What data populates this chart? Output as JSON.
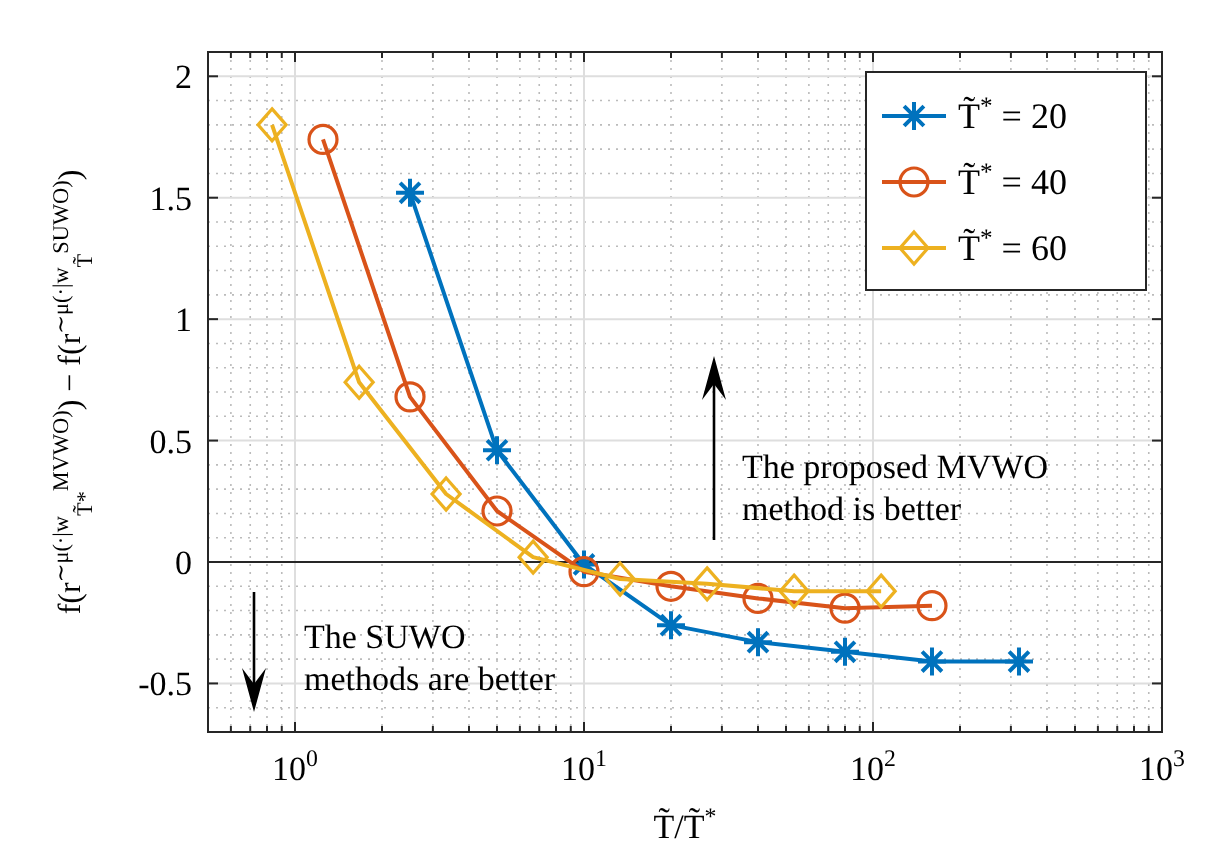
{
  "chart_data": {
    "type": "line",
    "xlabel": "T̃/T̃$^{*}$",
    "ylabel": "f(r$^{∼μ(·|w}$$_{T̃*}$$^{MVWO)}$) − f(r$^{∼μ(·|w}$$_{T̃}$$^{SUWO)}$)",
    "log": "x",
    "grid": true,
    "legend": "top right",
    "xlim": [
      0.5,
      1000
    ],
    "ylim": [
      -0.7,
      2.1
    ],
    "xticks": [
      {
        "value": 1,
        "label": "10$^{0}$"
      },
      {
        "value": 10,
        "label": "10$^{1}$"
      },
      {
        "value": 100,
        "label": "10$^{2}$"
      },
      {
        "value": 1000,
        "label": "10$^{3}$"
      }
    ],
    "yticks": [
      -0.5,
      0,
      0.5,
      1,
      1.5,
      2
    ],
    "ref_lines": [
      {
        "axis": "y",
        "value": 0,
        "color": "#262626"
      }
    ],
    "annotations": [
      "The proposed MVWO\nmethod is better",
      "The SUWO\nmethods are better"
    ],
    "series": [
      {
        "name": "T̃$^{*}$ = 20",
        "color": "#0072bd",
        "marker": "cross",
        "x": [
          2.5,
          5,
          10,
          20,
          40,
          80,
          160,
          320
        ],
        "values": [
          1.52,
          0.46,
          -0.01,
          -0.26,
          -0.33,
          -0.37,
          -0.41,
          -0.41
        ]
      },
      {
        "name": "T̃$^{*}$ = 40",
        "color": "#d95319",
        "marker": "circle",
        "x": [
          1.25,
          2.5,
          5,
          10,
          20,
          40,
          80,
          160
        ],
        "values": [
          1.74,
          0.68,
          0.21,
          -0.04,
          -0.1,
          -0.15,
          -0.19,
          -0.18
        ]
      },
      {
        "name": "T̃$^{*}$ = 60",
        "color": "#edb120",
        "marker": "diamond",
        "x": [
          0.833,
          1.667,
          3.333,
          6.667,
          13.33,
          26.67,
          53.33,
          106.7
        ],
        "values": [
          1.8,
          0.74,
          0.28,
          0.02,
          -0.07,
          -0.09,
          -0.12,
          -0.12
        ]
      }
    ]
  }
}
